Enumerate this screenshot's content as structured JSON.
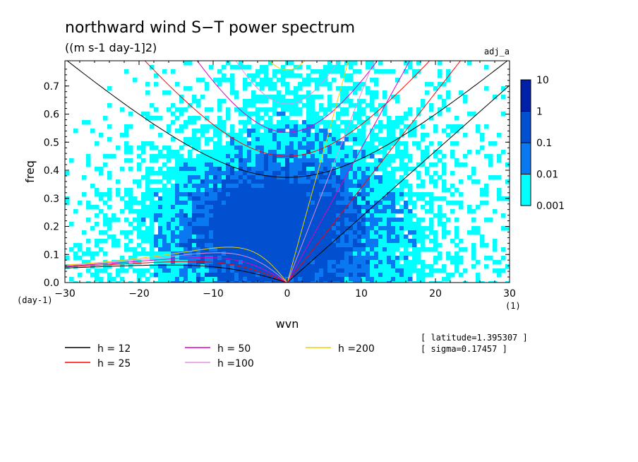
{
  "chart_data": {
    "type": "heatmap",
    "title": "northward wind S−T power spectrum",
    "subtitle": "((m s-1 day-1]2)",
    "experiment": "adj_a",
    "xlabel": "wvn",
    "ylabel": "freq",
    "x_unit": "(1)",
    "y_unit": "(day-1)",
    "xlim": [
      -30,
      30
    ],
    "ylim": [
      0,
      0.79
    ],
    "xticks": [
      -30,
      -20,
      -10,
      0,
      10,
      20,
      30
    ],
    "yticks": [
      0.0,
      0.1,
      0.2,
      0.3,
      0.4,
      0.5,
      0.6,
      0.7
    ],
    "xtick_labels": [
      "−30",
      "−20",
      "−10",
      "0",
      "10",
      "20",
      "30"
    ],
    "ytick_labels": [
      "0.0",
      "0.1",
      "0.2",
      "0.3",
      "0.4",
      "0.5",
      "0.6",
      "0.7"
    ],
    "colorbar": {
      "labels": [
        "10",
        "1",
        "0.1",
        "0.01",
        "0.001"
      ],
      "levels": [
        0.001,
        0.01,
        0.1,
        1,
        10
      ],
      "colors": [
        "#00ffff",
        "#0a78f0",
        "#0050d0",
        "#0020a8",
        "#5020b0"
      ]
    },
    "contour_regions": [
      {
        "level": 0.01,
        "x_range": [
          -30,
          30
        ],
        "freq_range": [
          0.0,
          0.78
        ],
        "note_color": "#00ffff"
      },
      {
        "level": 0.1,
        "x_range": [
          -15,
          12
        ],
        "freq_range": [
          0.0,
          0.45
        ],
        "note_color": "#0a78f0"
      },
      {
        "level": 1,
        "x_range": [
          -8,
          2
        ],
        "freq_range": [
          0.05,
          0.25
        ],
        "note_color": "#0050d0"
      }
    ],
    "dispersion_curves": [
      {
        "label": "h = 12",
        "h": 12,
        "color": "#000000"
      },
      {
        "label": "h = 25",
        "h": 25,
        "color": "#ff0000"
      },
      {
        "label": "h = 50",
        "h": 50,
        "color": "#e000c0"
      },
      {
        "label": "h =100",
        "h": 100,
        "color": "#e090e0"
      },
      {
        "label": "h =200",
        "h": 200,
        "color": "#f0d000"
      }
    ],
    "latitude_text": "[ latitude=1.395307 ]",
    "sigma_text": "[ sigma=0.17457 ]"
  }
}
